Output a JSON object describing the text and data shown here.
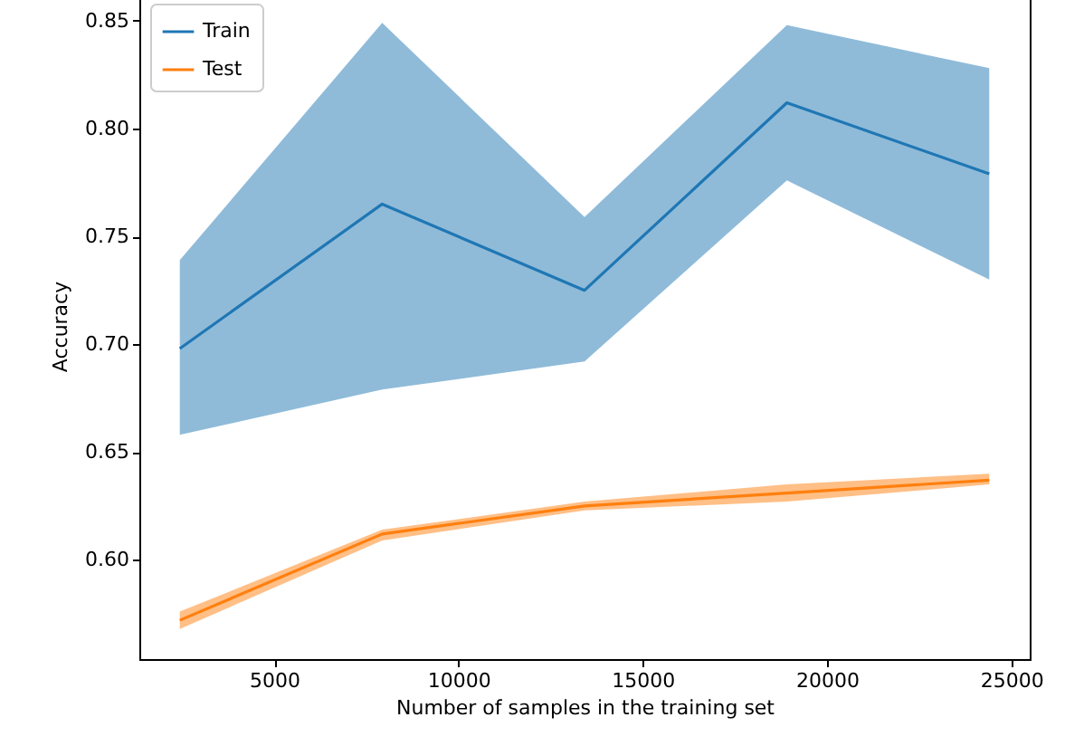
{
  "chart_data": {
    "type": "line",
    "xlabel": "Number of samples in the training set",
    "ylabel": "Accuracy",
    "x": [
      2440,
      7930,
      13420,
      18910,
      24400
    ],
    "series": [
      {
        "name": "Train",
        "color": "#1f77b4",
        "values": [
          0.698,
          0.765,
          0.725,
          0.812,
          0.779
        ],
        "lower": [
          0.658,
          0.679,
          0.692,
          0.776,
          0.73
        ],
        "upper": [
          0.739,
          0.849,
          0.759,
          0.848,
          0.828
        ]
      },
      {
        "name": "Test",
        "color": "#ff7f0e",
        "values": [
          0.572,
          0.612,
          0.625,
          0.631,
          0.637
        ],
        "lower": [
          0.568,
          0.609,
          0.623,
          0.627,
          0.635
        ],
        "upper": [
          0.576,
          0.614,
          0.627,
          0.635,
          0.64
        ]
      }
    ],
    "xlim": [
      1342,
      25498
    ],
    "xticks": [
      5000,
      10000,
      15000,
      20000,
      25000
    ],
    "ylim": [
      0.554,
      0.863
    ],
    "yticks": [
      {
        "value": 0.6,
        "label": "0.60"
      },
      {
        "value": 0.65,
        "label": "0.65"
      },
      {
        "value": 0.7,
        "label": "0.70"
      },
      {
        "value": 0.75,
        "label": "0.75"
      },
      {
        "value": 0.8,
        "label": "0.80"
      },
      {
        "value": 0.85,
        "label": "0.85"
      }
    ],
    "grid": false,
    "legend": "top left",
    "marker": "none",
    "line_style": "solid"
  }
}
